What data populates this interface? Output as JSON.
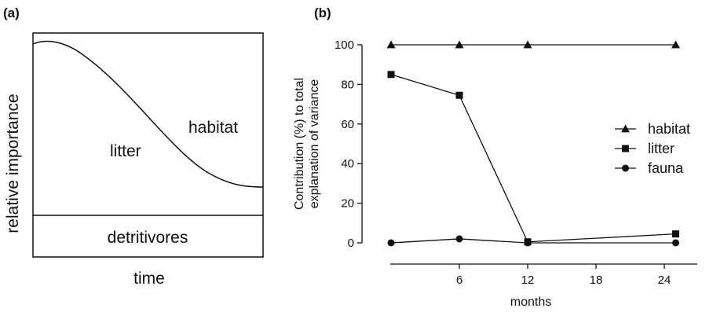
{
  "panel_a": {
    "label": "(a)",
    "ylabel": "relative importance",
    "xlabel": "time",
    "region_labels": {
      "habitat": "habitat",
      "litter": "litter",
      "detritivores": "detritivores"
    }
  },
  "chart_data": {
    "type": "line",
    "panel_label": "(b)",
    "xlabel": "months",
    "ylabel_line1": "Contribution (%) to total",
    "ylabel_line2": "explanation of variance",
    "xticks": [
      6,
      12,
      18,
      24
    ],
    "yticks": [
      0,
      20,
      40,
      60,
      80,
      100
    ],
    "xlim": [
      0,
      26
    ],
    "ylim": [
      0,
      100
    ],
    "grid": false,
    "legend_position": "right",
    "series": [
      {
        "name": "habitat",
        "marker": "triangle",
        "x": [
          0,
          6,
          12,
          25
        ],
        "y": [
          100,
          100,
          100,
          100
        ]
      },
      {
        "name": "litter",
        "marker": "square",
        "x": [
          0,
          6,
          12,
          25
        ],
        "y": [
          85,
          74.5,
          0.5,
          4.5
        ]
      },
      {
        "name": "fauna",
        "marker": "circle",
        "x": [
          0,
          6,
          12,
          25
        ],
        "y": [
          0,
          2,
          0,
          0
        ]
      }
    ]
  }
}
